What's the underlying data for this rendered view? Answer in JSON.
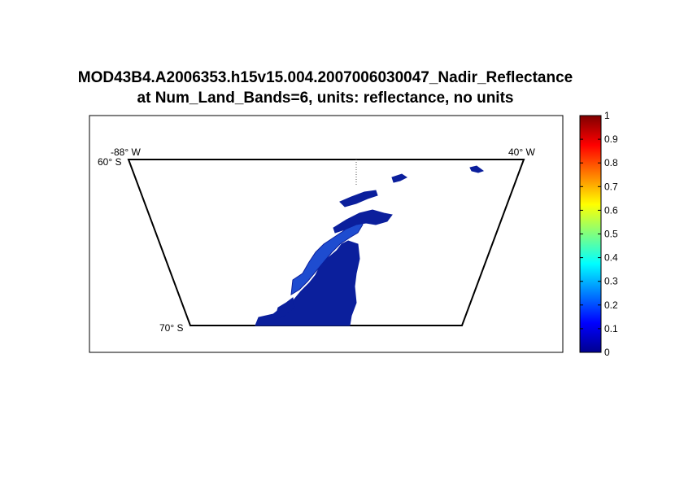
{
  "title": {
    "line1": "MOD43B4.A2006353.h15v15.004.2007006030047_Nadir_Reflectance",
    "line2": "at Num_Land_Bands=6, units: reflectance, no units"
  },
  "chart_data": {
    "type": "heatmap",
    "title": "MOD43B4.A2006353.h15v15.004.2007006030047_Nadir_Reflectance at Num_Land_Bands=6, units: reflectance, no units",
    "map_labels": {
      "top_left_lon": "-88° W",
      "top_left_lat": "60° S",
      "top_right_lon": "40° W",
      "bottom_left_lat": "70° S"
    },
    "colorbar": {
      "range": [
        0,
        1
      ],
      "ticks": [
        "0",
        "0.1",
        "0.2",
        "0.3",
        "0.4",
        "0.5",
        "0.6",
        "0.7",
        "0.8",
        "0.9",
        "1"
      ],
      "colormap": "jet"
    },
    "dominant_value_range": [
      0.0,
      0.15
    ],
    "colors": {
      "land": "#0b1f9c",
      "land_light": "#1e4cd0",
      "frame": "#000000"
    }
  }
}
